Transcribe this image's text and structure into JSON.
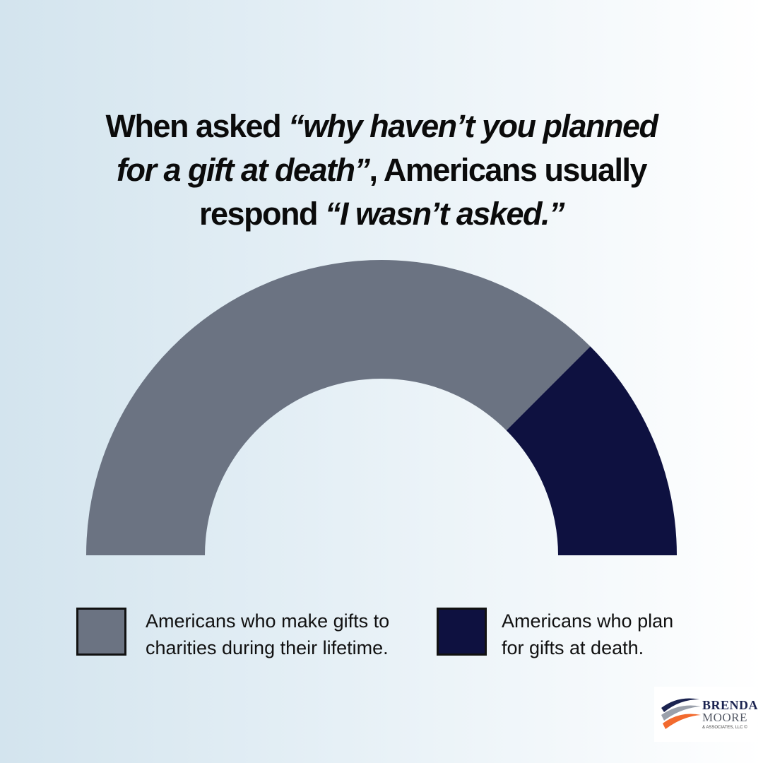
{
  "title": {
    "line1_plain": "When asked ",
    "line1_italic": "“why haven’t you planned",
    "line2_italic": "for a gift at death”",
    "line2_plain": ", Americans usually",
    "line3_plain": "respond ",
    "line3_italic": "“I wasn’t asked.”"
  },
  "chart_data": {
    "type": "pie",
    "style": "semi-donut",
    "title": "",
    "xlabel": "",
    "ylabel": "",
    "categories": [
      "Americans who make gifts to charities during their lifetime.",
      "Americans who plan for gifts at death."
    ],
    "values": [
      75,
      25
    ],
    "colors": [
      "#6b7382",
      "#0e1140"
    ],
    "legend_placement": "bottom"
  },
  "legend": {
    "items": [
      {
        "line1": "Americans who make gifts to",
        "line2": "charities during their lifetime.",
        "color": "#6b7382"
      },
      {
        "line1": "Americans who plan",
        "line2": "for gifts at death.",
        "color": "#0e1140"
      }
    ]
  },
  "logo": {
    "line1": "BRENDA",
    "line2": "MOORE",
    "line3": "& ASSOCIATES, LLC ©"
  }
}
